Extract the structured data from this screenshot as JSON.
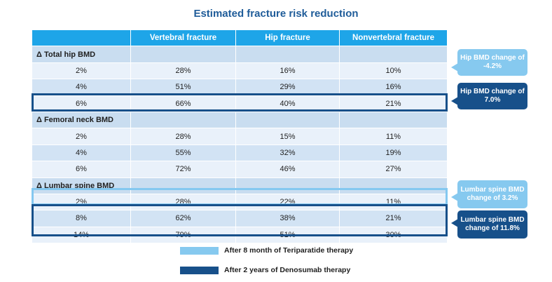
{
  "title": "Estimated fracture risk reduction",
  "table": {
    "headers": [
      "",
      "Vertebral fracture",
      "Hip fracture",
      "Nonvertebral fracture"
    ],
    "sections": [
      {
        "label": "Δ Total hip BMD",
        "rows": [
          [
            "2%",
            "28%",
            "16%",
            "10%"
          ],
          [
            "4%",
            "51%",
            "29%",
            "16%"
          ],
          [
            "6%",
            "66%",
            "40%",
            "21%"
          ]
        ]
      },
      {
        "label": "Δ Femoral neck BMD",
        "rows": [
          [
            "2%",
            "28%",
            "15%",
            "11%"
          ],
          [
            "4%",
            "55%",
            "32%",
            "19%"
          ],
          [
            "6%",
            "72%",
            "46%",
            "27%"
          ]
        ]
      },
      {
        "label": "Δ Lumbar spine BMD",
        "rows": [
          [
            "2%",
            "28%",
            "22%",
            "11%"
          ],
          [
            "8%",
            "62%",
            "38%",
            "21%"
          ],
          [
            "14%",
            "79%",
            "51%",
            "30%"
          ]
        ]
      }
    ]
  },
  "callouts": {
    "hip_teriparatide": "Hip BMD change of -4.2%",
    "hip_denosumab": "Hip BMD change of 7.0%",
    "spine_teriparatide": "Lumbar spine BMD change of 3.2%",
    "spine_denosumab": "Lumbar spine BMD change of 11.8%"
  },
  "legend": {
    "teriparatide": "After 8 month of Teriparatide therapy",
    "denosumab": "After 2 years of Denosumab therapy"
  },
  "colors": {
    "header": "#1ea5e8",
    "teriparatide": "#86c9ef",
    "denosumab": "#17508a",
    "title": "#1f5c99"
  }
}
